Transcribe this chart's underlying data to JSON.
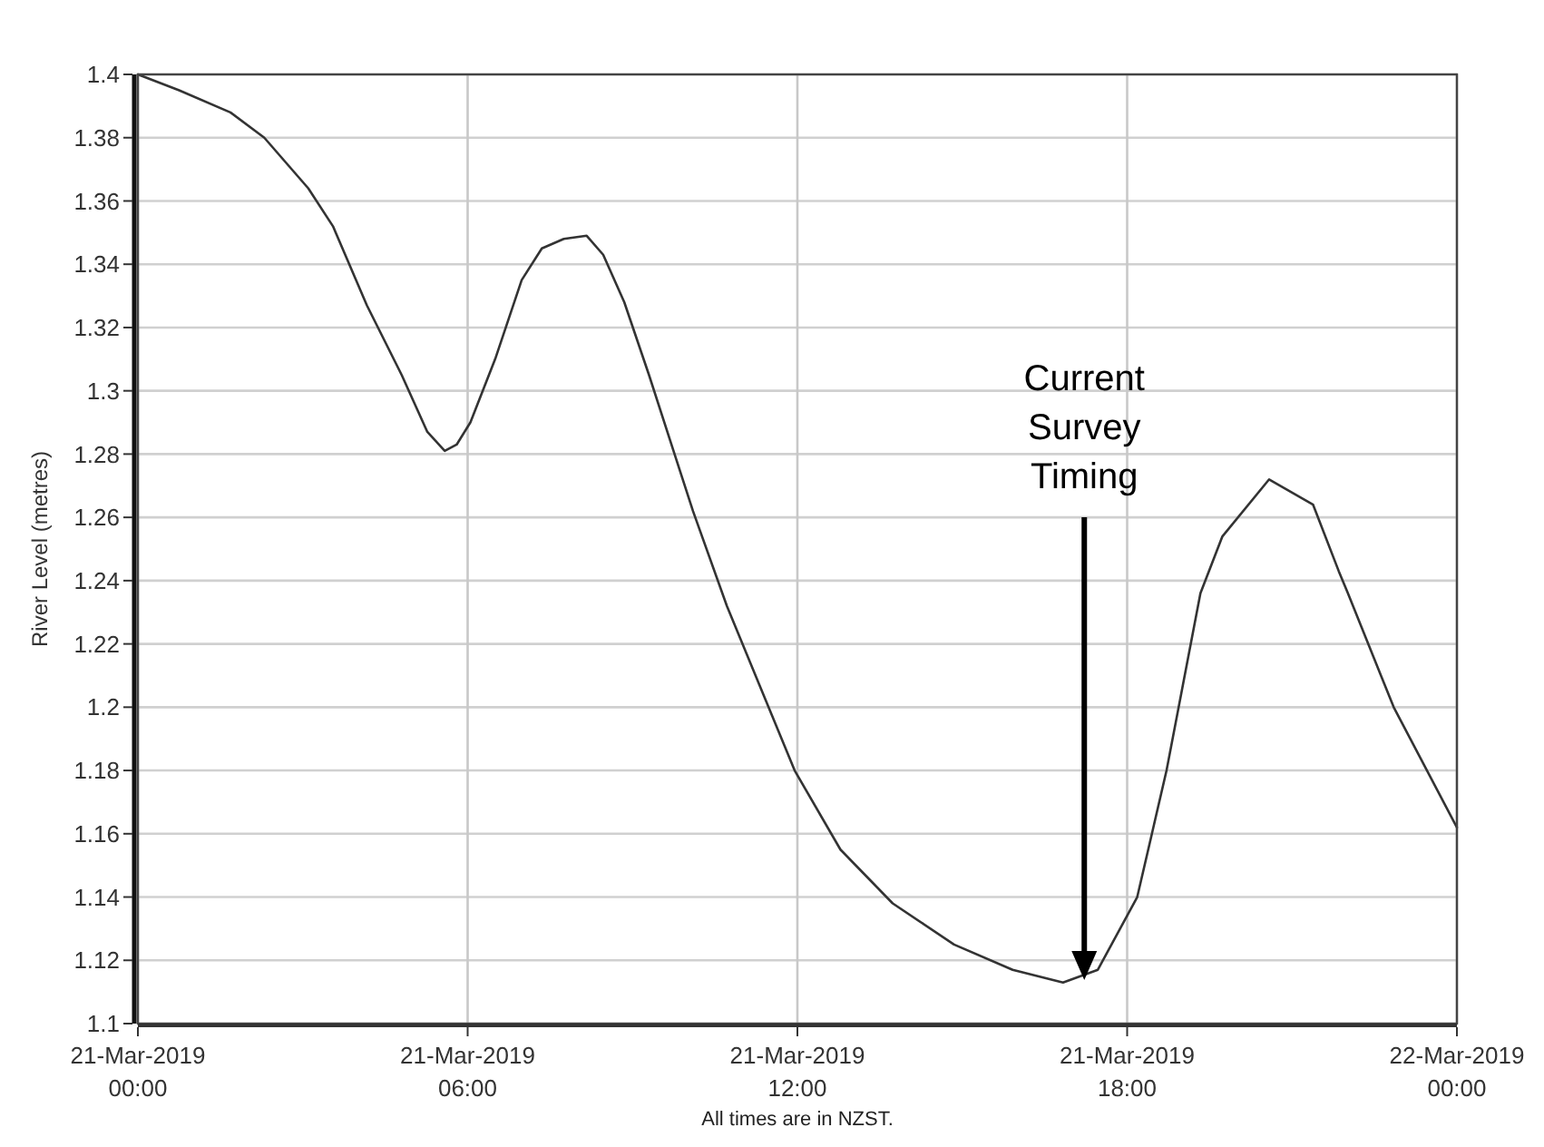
{
  "chart_data": {
    "type": "line",
    "ylabel": "River Level (metres)",
    "x": [
      "2019-03-21T00:00",
      "2019-03-21T00:45",
      "2019-03-21T01:41",
      "2019-03-21T02:18",
      "2019-03-21T03:06",
      "2019-03-21T03:33",
      "2019-03-21T04:10",
      "2019-03-21T04:48",
      "2019-03-21T05:16",
      "2019-03-21T05:35",
      "2019-03-21T05:48",
      "2019-03-21T06:03",
      "2019-03-21T06:30",
      "2019-03-21T06:59",
      "2019-03-21T07:21",
      "2019-03-21T07:45",
      "2019-03-21T08:10",
      "2019-03-21T08:28",
      "2019-03-21T08:51",
      "2019-03-21T09:18",
      "2019-03-21T09:47",
      "2019-03-21T10:06",
      "2019-03-21T10:43",
      "2019-03-21T11:57",
      "2019-03-21T12:47",
      "2019-03-21T13:44",
      "2019-03-21T14:51",
      "2019-03-21T15:55",
      "2019-03-21T16:50",
      "2019-03-21T17:28",
      "2019-03-21T18:11",
      "2019-03-21T18:43",
      "2019-03-21T19:20",
      "2019-03-21T19:44",
      "2019-03-21T20:35",
      "2019-03-21T21:23",
      "2019-03-21T21:51",
      "2019-03-21T22:01",
      "2019-03-21T22:51",
      "2019-03-22T00:00"
    ],
    "series": [
      {
        "color": "#333333",
        "values": [
          1.4,
          1.395,
          1.388,
          1.38,
          1.364,
          1.352,
          1.327,
          1.305,
          1.287,
          1.281,
          1.283,
          1.29,
          1.31,
          1.335,
          1.345,
          1.348,
          1.349,
          1.343,
          1.328,
          1.305,
          1.279,
          1.262,
          1.232,
          1.18,
          1.155,
          1.138,
          1.125,
          1.117,
          1.113,
          1.117,
          1.14,
          1.18,
          1.236,
          1.254,
          1.272,
          1.264,
          1.243,
          1.236,
          1.2,
          1.162
        ]
      }
    ],
    "xlim": [
      "2019-03-21T00:00",
      "2019-03-22T00:00"
    ],
    "xticks": [
      {
        "value": "2019-03-21T00:00",
        "label": "21-Mar-2019 00:00"
      },
      {
        "value": "2019-03-21T06:00",
        "label": "21-Mar-2019 06:00"
      },
      {
        "value": "2019-03-21T12:00",
        "label": "21-Mar-2019 12:00"
      },
      {
        "value": "2019-03-21T18:00",
        "label": "21-Mar-2019 18:00"
      },
      {
        "value": "2019-03-22T00:00",
        "label": "22-Mar-2019 00:00"
      }
    ],
    "ylim": [
      1.1,
      1.4
    ],
    "yticks": [
      1.1,
      1.12,
      1.14,
      1.16,
      1.18,
      1.2,
      1.22,
      1.24,
      1.26,
      1.28,
      1.3,
      1.32,
      1.34,
      1.36,
      1.38,
      1.4
    ],
    "grid": true,
    "marker": "none",
    "line_style": "solid",
    "annotations": [
      "Current Survey Timing",
      "All times are in NZST."
    ]
  }
}
